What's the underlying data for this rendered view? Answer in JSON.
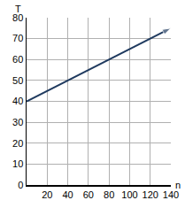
{
  "chart_data": {
    "type": "line",
    "x_label": "n",
    "y_label": "T",
    "x": [
      0,
      140
    ],
    "series": [
      {
        "color": "#1f3a5f",
        "values": [
          40,
          75
        ],
        "marker": "arrow"
      }
    ],
    "xlim": [
      0,
      140
    ],
    "xticks": [
      20,
      40,
      60,
      80,
      100,
      120,
      140
    ],
    "ylim": [
      0,
      80
    ],
    "yticks": [
      0,
      10,
      20,
      30,
      40,
      50,
      60,
      70,
      80
    ],
    "grid": true
  }
}
